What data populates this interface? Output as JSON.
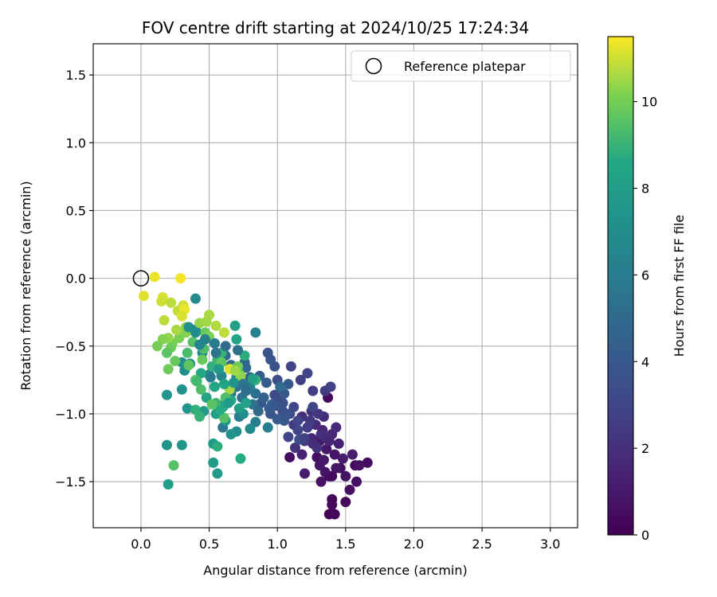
{
  "chart_data": {
    "type": "scatter",
    "title": "FOV centre drift starting at 2024/10/25 17:24:34",
    "xlabel": "Angular distance from reference (arcmin)",
    "ylabel": "Rotation from reference (arcmin)",
    "xlim": [
      -0.35,
      3.2
    ],
    "ylim": [
      -1.84,
      1.73
    ],
    "xticks": [
      0.0,
      0.5,
      1.0,
      1.5,
      2.0,
      2.5,
      3.0
    ],
    "xtick_labels": [
      "0.0",
      "0.5",
      "1.0",
      "1.5",
      "2.0",
      "2.5",
      "3.0"
    ],
    "yticks": [
      -1.5,
      -1.0,
      -0.5,
      0.0,
      0.5,
      1.0,
      1.5
    ],
    "ytick_labels": [
      "−1.5",
      "−1.0",
      "−0.5",
      "0.0",
      "0.5",
      "1.0",
      "1.5"
    ],
    "grid": true,
    "legend": {
      "placement": "top-right",
      "entries": [
        "Reference platepar"
      ]
    },
    "reference_point": {
      "x": 0.0,
      "y": 0.0
    },
    "colorbar": {
      "label": "Hours from first FF file",
      "colormap": "viridis",
      "range": [
        0,
        11.5
      ],
      "ticks": [
        0,
        2,
        4,
        6,
        8,
        10
      ],
      "tick_labels": [
        "0",
        "2",
        "4",
        "6",
        "8",
        "10"
      ]
    },
    "series": [
      {
        "points": [
          [
            1.38,
            -1.74,
            0.2
          ],
          [
            1.42,
            -1.74,
            0.3
          ],
          [
            1.4,
            -1.63,
            0.2
          ],
          [
            1.4,
            -1.67,
            0.4
          ],
          [
            1.5,
            -1.65,
            0.3
          ],
          [
            1.38,
            -1.46,
            0.3
          ],
          [
            1.4,
            -1.46,
            0.4
          ],
          [
            1.46,
            -1.4,
            0.5
          ],
          [
            1.57,
            -1.38,
            0.4
          ],
          [
            1.66,
            -1.36,
            0.5
          ],
          [
            1.53,
            -1.56,
            0.6
          ],
          [
            1.58,
            -1.5,
            0.6
          ],
          [
            1.32,
            -1.5,
            0.7
          ],
          [
            1.35,
            -1.43,
            0.8
          ],
          [
            1.29,
            -1.32,
            0.5
          ],
          [
            1.42,
            -1.3,
            0.9
          ],
          [
            1.36,
            -1.26,
            1.0
          ],
          [
            1.48,
            -1.33,
            1.1
          ],
          [
            1.31,
            -1.2,
            1.1
          ],
          [
            1.37,
            -0.88,
            0.4
          ],
          [
            1.09,
            -1.32,
            0.6
          ],
          [
            1.2,
            -1.44,
            1.2
          ],
          [
            1.25,
            -1.18,
            1.4
          ],
          [
            1.33,
            -1.12,
            1.5
          ],
          [
            1.4,
            -1.15,
            1.6
          ],
          [
            1.43,
            -1.1,
            1.7
          ],
          [
            1.28,
            -1.08,
            1.8
          ],
          [
            1.18,
            -1.02,
            2.0
          ],
          [
            1.34,
            -1.02,
            1.9
          ],
          [
            1.25,
            -0.98,
            2.1
          ],
          [
            1.13,
            -1.25,
            2.2
          ],
          [
            1.12,
            -1.08,
            2.4
          ],
          [
            1.35,
            -0.83,
            2.5
          ],
          [
            1.26,
            -0.83,
            2.6
          ],
          [
            1.17,
            -0.75,
            2.7
          ],
          [
            1.39,
            -0.8,
            2.8
          ],
          [
            1.22,
            -0.7,
            2.9
          ],
          [
            1.1,
            -0.65,
            3.0
          ],
          [
            1.2,
            -1.2,
            2.3
          ],
          [
            1.29,
            -1.25,
            2.2
          ],
          [
            1.08,
            -1.17,
            3.0
          ],
          [
            1.12,
            -0.95,
            3.1
          ],
          [
            1.0,
            -0.9,
            3.2
          ],
          [
            0.98,
            -0.86,
            3.3
          ],
          [
            1.04,
            -0.98,
            3.4
          ],
          [
            1.0,
            -0.75,
            3.5
          ],
          [
            0.98,
            -0.65,
            3.6
          ],
          [
            0.93,
            -0.55,
            3.7
          ],
          [
            0.95,
            -0.6,
            3.8
          ],
          [
            1.05,
            -0.85,
            3.9
          ],
          [
            0.88,
            -0.92,
            4.0
          ],
          [
            1.08,
            -0.78,
            4.1
          ],
          [
            0.92,
            -0.77,
            4.2
          ],
          [
            0.87,
            -0.72,
            4.3
          ],
          [
            0.8,
            -0.73,
            4.4
          ],
          [
            0.76,
            -0.62,
            4.6
          ],
          [
            0.77,
            -0.66,
            4.8
          ],
          [
            0.66,
            -0.64,
            4.9
          ],
          [
            0.62,
            -0.57,
            5.0
          ],
          [
            0.58,
            -0.62,
            5.1
          ],
          [
            1.16,
            -1.19,
            3.5
          ],
          [
            1.05,
            -1.05,
            4.0
          ],
          [
            0.95,
            -1.0,
            3.8
          ],
          [
            0.96,
            -0.93,
            4.5
          ],
          [
            1.02,
            -0.8,
            5.0
          ],
          [
            0.84,
            -0.85,
            5.2
          ],
          [
            0.82,
            -0.93,
            5.3
          ],
          [
            0.74,
            -0.88,
            5.4
          ],
          [
            0.7,
            -0.8,
            5.5
          ],
          [
            0.66,
            -0.85,
            5.6
          ],
          [
            0.62,
            -0.92,
            5.7
          ],
          [
            0.6,
            -1.1,
            5.8
          ],
          [
            0.72,
            -1.02,
            5.9
          ],
          [
            0.84,
            -1.06,
            6.0
          ],
          [
            0.93,
            -1.1,
            6.1
          ],
          [
            0.84,
            -0.4,
            6.2
          ],
          [
            0.8,
            -0.8,
            6.3
          ],
          [
            0.7,
            -0.73,
            6.4
          ],
          [
            0.59,
            -0.72,
            6.5
          ],
          [
            0.5,
            -0.71,
            6.6
          ],
          [
            0.45,
            -0.55,
            6.7
          ],
          [
            0.4,
            -0.15,
            6.8
          ],
          [
            0.4,
            -0.38,
            6.9
          ],
          [
            0.3,
            -0.62,
            7.0
          ],
          [
            0.36,
            -0.63,
            7.1
          ],
          [
            0.32,
            -0.68,
            7.2
          ],
          [
            0.3,
            -0.82,
            7.3
          ],
          [
            0.19,
            -0.86,
            7.4
          ],
          [
            0.19,
            -1.23,
            7.5
          ],
          [
            0.3,
            -1.23,
            7.6
          ],
          [
            0.53,
            -1.22,
            7.7
          ],
          [
            0.56,
            -1.44,
            7.8
          ],
          [
            0.53,
            -1.36,
            7.9
          ],
          [
            0.2,
            -1.52,
            8.0
          ],
          [
            0.34,
            -0.96,
            7.4
          ],
          [
            0.46,
            -0.98,
            7.8
          ],
          [
            0.62,
            -1.05,
            7.6
          ],
          [
            0.7,
            -1.13,
            7.0
          ],
          [
            0.75,
            -1.0,
            7.2
          ],
          [
            0.8,
            -1.11,
            6.9
          ],
          [
            0.66,
            -1.15,
            7.3
          ],
          [
            0.55,
            -1.0,
            8.1
          ],
          [
            0.6,
            -0.95,
            8.3
          ],
          [
            0.48,
            -0.88,
            8.4
          ],
          [
            0.54,
            -0.8,
            8.5
          ],
          [
            0.66,
            -0.9,
            8.6
          ],
          [
            0.73,
            -1.33,
            8.7
          ],
          [
            0.56,
            -1.24,
            8.8
          ],
          [
            0.44,
            -0.7,
            8.6
          ],
          [
            0.52,
            -0.65,
            8.9
          ],
          [
            0.59,
            -0.55,
            9.0
          ],
          [
            0.7,
            -0.45,
            8.4
          ],
          [
            0.69,
            -0.35,
            8.2
          ],
          [
            0.76,
            -0.57,
            8.8
          ],
          [
            0.84,
            -0.75,
            9.0
          ],
          [
            0.72,
            -0.7,
            9.2
          ],
          [
            0.66,
            -0.67,
            9.3
          ],
          [
            0.56,
            -0.6,
            9.1
          ],
          [
            0.46,
            -0.52,
            9.4
          ],
          [
            0.38,
            -0.47,
            9.5
          ],
          [
            0.4,
            -0.75,
            9.6
          ],
          [
            0.35,
            -0.64,
            9.7
          ],
          [
            0.25,
            -0.61,
            9.8
          ],
          [
            0.2,
            -0.67,
            9.9
          ],
          [
            0.23,
            -0.48,
            10.0
          ],
          [
            0.28,
            -0.44,
            10.1
          ],
          [
            0.33,
            -0.4,
            10.2
          ],
          [
            0.33,
            -0.36,
            10.3
          ],
          [
            0.43,
            -0.33,
            10.4
          ],
          [
            0.48,
            -0.32,
            10.5
          ],
          [
            0.5,
            -0.27,
            10.6
          ],
          [
            0.55,
            -0.35,
            10.7
          ],
          [
            0.61,
            -0.4,
            10.8
          ],
          [
            0.47,
            -0.4,
            9.8
          ],
          [
            0.4,
            -0.97,
            8.9
          ],
          [
            0.43,
            -1.02,
            9.0
          ],
          [
            0.61,
            -1.03,
            9.5
          ],
          [
            0.22,
            -0.18,
            10.8
          ],
          [
            0.27,
            -0.24,
            10.9
          ],
          [
            0.31,
            -0.2,
            11.0
          ],
          [
            0.16,
            -0.14,
            11.1
          ],
          [
            0.15,
            -0.17,
            11.0
          ],
          [
            0.17,
            -0.31,
            10.8
          ],
          [
            0.26,
            -0.38,
            10.6
          ],
          [
            0.2,
            -0.44,
            10.4
          ],
          [
            0.16,
            -0.45,
            10.2
          ],
          [
            0.12,
            -0.5,
            10.0
          ],
          [
            0.22,
            -0.51,
            9.9
          ],
          [
            0.19,
            -0.55,
            9.6
          ],
          [
            0.24,
            -1.38,
            9.5
          ],
          [
            0.44,
            -0.82,
            9.4
          ],
          [
            0.65,
            -0.82,
            10.6
          ],
          [
            0.65,
            -0.67,
            11.2
          ],
          [
            0.59,
            -0.62,
            9.7
          ],
          [
            0.5,
            -0.43,
            10.1
          ],
          [
            0.1,
            0.01,
            11.3
          ],
          [
            0.29,
            0.0,
            11.4
          ],
          [
            0.02,
            -0.13,
            11.2
          ],
          [
            0.32,
            -0.23,
            11.3
          ],
          [
            0.3,
            -0.28,
            11.1
          ],
          [
            0.34,
            -0.55,
            9.3
          ],
          [
            0.45,
            -0.6,
            9.8
          ],
          [
            0.41,
            -0.76,
            9.2
          ],
          [
            0.55,
            -0.92,
            9.1
          ],
          [
            0.58,
            -0.97,
            8.7
          ],
          [
            0.52,
            -0.93,
            9.6
          ],
          [
            0.62,
            -0.88,
            9.4
          ],
          [
            0.71,
            -0.65,
            9.9
          ],
          [
            0.73,
            -0.72,
            10.3
          ],
          [
            0.69,
            -0.68,
            10.5
          ],
          [
            0.82,
            -0.74,
            8.1
          ],
          [
            0.77,
            -0.92,
            8.2
          ],
          [
            0.72,
            -0.96,
            8.0
          ],
          [
            0.61,
            -0.78,
            8.3
          ],
          [
            0.64,
            -0.92,
            7.9
          ],
          [
            0.68,
            -0.77,
            7.5
          ],
          [
            0.57,
            -0.67,
            7.7
          ],
          [
            0.51,
            -0.73,
            6.0
          ],
          [
            0.4,
            -0.4,
            7.0
          ],
          [
            0.35,
            -0.36,
            7.1
          ],
          [
            0.43,
            -0.49,
            6.5
          ],
          [
            0.47,
            -0.45,
            6.3
          ],
          [
            0.54,
            -0.48,
            5.9
          ],
          [
            0.55,
            -0.55,
            5.5
          ],
          [
            0.62,
            -0.5,
            5.0
          ],
          [
            0.71,
            -0.53,
            5.3
          ],
          [
            0.75,
            -0.78,
            5.5
          ],
          [
            0.77,
            -0.83,
            5.1
          ],
          [
            0.86,
            -0.98,
            4.9
          ],
          [
            0.9,
            -0.88,
            4.4
          ],
          [
            0.99,
            -0.94,
            3.9
          ],
          [
            0.94,
            -0.96,
            4.2
          ],
          [
            1.04,
            -0.92,
            3.6
          ],
          [
            1.09,
            -1.0,
            3.3
          ],
          [
            1.15,
            -1.05,
            3.0
          ],
          [
            1.15,
            -1.12,
            2.9
          ],
          [
            1.2,
            -1.18,
            2.7
          ],
          [
            1.24,
            -1.05,
            2.5
          ],
          [
            1.3,
            -1.0,
            2.3
          ],
          [
            1.32,
            -1.15,
            2.0
          ],
          [
            1.36,
            -1.18,
            1.8
          ],
          [
            1.38,
            -1.2,
            1.6
          ],
          [
            1.26,
            -1.22,
            1.9
          ],
          [
            1.22,
            -1.1,
            2.6
          ],
          [
            1.18,
            -1.3,
            1.4
          ],
          [
            1.45,
            -1.22,
            1.3
          ],
          [
            1.34,
            -1.34,
            1.1
          ],
          [
            1.31,
            -1.38,
            1.0
          ],
          [
            1.43,
            -1.4,
            0.9
          ],
          [
            1.5,
            -1.46,
            0.8
          ],
          [
            1.55,
            -1.3,
            1.2
          ],
          [
            1.6,
            -1.38,
            0.7
          ],
          [
            1.26,
            -0.95,
            3.0
          ],
          [
            1.06,
            -1.0,
            3.7
          ],
          [
            1.0,
            -1.04,
            4.1
          ]
        ]
      }
    ]
  }
}
